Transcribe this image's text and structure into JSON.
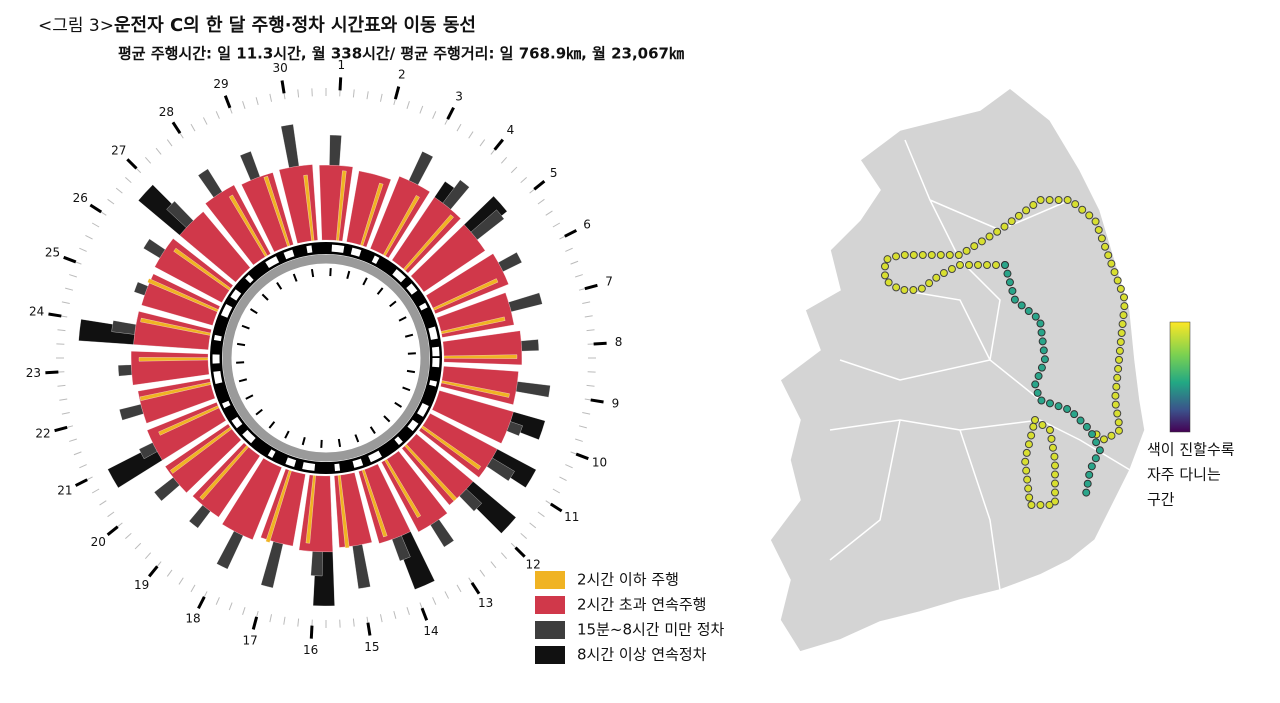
{
  "chart_data": {
    "type": "radial",
    "figure_label": "<그림 3>",
    "title": "운전자 C의 한 달 주행·정차 시간표와 이동 동선",
    "subtitle": "평균 주행시간: 일 11.3시간, 월 338시간/ 평균 주행거리: 일 768.9㎞, 월 23,067㎞",
    "categories": [
      "1",
      "2",
      "3",
      "4",
      "5",
      "6",
      "7",
      "8",
      "9",
      "10",
      "11",
      "12",
      "13",
      "14",
      "15",
      "16",
      "17",
      "18",
      "19",
      "20",
      "21",
      "22",
      "23",
      "24",
      "25",
      "26",
      "27",
      "28",
      "29",
      "30"
    ],
    "rlim": [
      0,
      14
    ],
    "series": [
      {
        "name": "2시간 이하 주행",
        "color": "#f0b323",
        "values": [
          7.0,
          6.5,
          6.8,
          7.2,
          null,
          7.0,
          6.5,
          7.3,
          6.9,
          null,
          7.1,
          7.4,
          6.6,
          7.0,
          7.3,
          6.8,
          7.5,
          null,
          7.0,
          7.4,
          6.5,
          7.2,
          6.9,
          7.1,
          7.6,
          6.8,
          null,
          7.0,
          7.3,
          6.6
        ]
      },
      {
        "name": "2시간 초과 연속주행",
        "color": "#d0384a",
        "values": [
          7.5,
          7.2,
          7.8,
          7.6,
          7.4,
          7.9,
          7.3,
          7.8,
          7.5,
          7.7,
          7.6,
          7.4,
          7.9,
          7.5,
          7.2,
          7.6,
          7.3,
          7.8,
          7.4,
          7.6,
          7.5,
          7.3,
          7.7,
          7.5,
          7.4,
          7.6,
          7.3,
          7.8,
          7.5,
          7.6
        ]
      },
      {
        "name": "15분~8시간 미만 정차",
        "color": "#3d3d3d",
        "values": [
          10.5,
          6,
          11,
          10.5,
          10.8,
          10,
          10.5,
          9.5,
          10.8,
          9,
          10.2,
          9.5,
          10.5,
          9.8,
          11.5,
          10,
          11.8,
          11.5,
          9.5,
          10,
          9,
          9.5,
          9,
          9.8,
          8.5,
          9.5,
          10,
          10.5,
          10.2,
          11.8
        ]
      },
      {
        "name": "8시간 이상 연속정차",
        "color": "#111111",
        "values": [
          null,
          null,
          null,
          9.5,
          11.5,
          null,
          null,
          null,
          null,
          11,
          12,
          13,
          null,
          13,
          null,
          13,
          null,
          null,
          null,
          null,
          12.7,
          null,
          null,
          13,
          null,
          null,
          12.7,
          null,
          null,
          null
        ]
      }
    ]
  },
  "map": {
    "colorbar_label": [
      "색이 진할수록",
      "자주 다니는",
      "구간"
    ]
  }
}
